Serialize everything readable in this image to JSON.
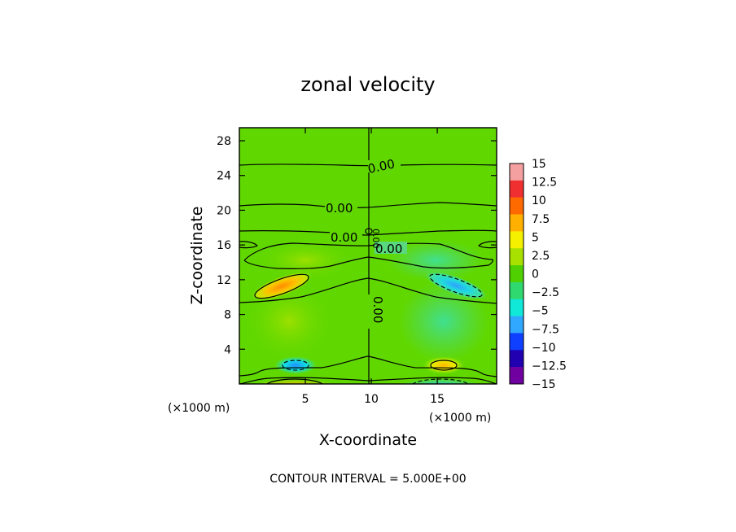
{
  "chart_data": {
    "type": "heatmap",
    "title": "zonal velocity",
    "xlabel": "X-coordinate",
    "ylabel": "Z-coordinate",
    "x_unit": "(×1000 m)",
    "y_unit": "(×1000 m)",
    "xlim": [
      0,
      19.5
    ],
    "ylim": [
      0,
      29.5
    ],
    "x_ticks": [
      "5",
      "10",
      "15"
    ],
    "y_ticks": [
      "4",
      "8",
      "12",
      "16",
      "20",
      "24",
      "28"
    ],
    "colorbar": {
      "ticks": [
        "15",
        "12.5",
        "10",
        "7.5",
        "5",
        "2.5",
        "0",
        "−2.5",
        "−5",
        "−7.5",
        "−10",
        "−12.5",
        "−15"
      ],
      "colors": [
        "#f4a0a0",
        "#f03030",
        "#ff6a00",
        "#ffb000",
        "#f4f000",
        "#a8e000",
        "#50d000",
        "#30d870",
        "#10e8d8",
        "#30a8ff",
        "#1040ff",
        "#2000b0",
        "#7000a0"
      ]
    },
    "contour_labels": [
      "0.00",
      "0.00",
      "0.00",
      "0.00",
      "0.00",
      "0.00"
    ],
    "contour_interval": "CONTOUR INTERVAL = 5.000E+00",
    "features": [
      {
        "type": "max",
        "x": 4.5,
        "z": 11.8,
        "value": 7
      },
      {
        "type": "min",
        "x": 15.3,
        "z": 11.5,
        "value": -5
      },
      {
        "type": "max",
        "x": 15.3,
        "z": 2.5,
        "value": 5
      },
      {
        "type": "min",
        "x": 4.5,
        "z": 2.5,
        "value": -5
      },
      {
        "type": "max",
        "x": 4.5,
        "z": 0.3,
        "value": 12
      },
      {
        "type": "min",
        "x": 15.3,
        "z": 0.3,
        "value": -11
      }
    ]
  }
}
